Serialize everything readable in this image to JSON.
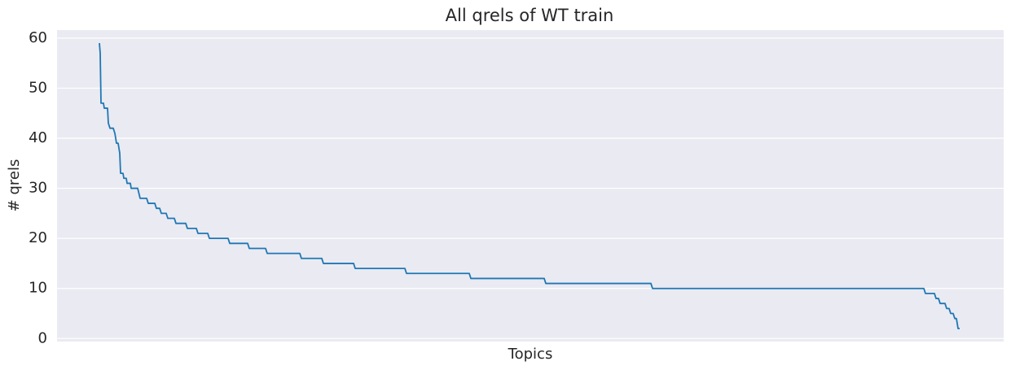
{
  "chart_data": {
    "type": "line",
    "title": "All qrels of WT train",
    "x_label": "Topics",
    "y_label": "# qrels",
    "x": [
      0,
      1,
      2,
      5,
      6,
      10,
      11,
      13,
      17,
      19,
      21,
      23,
      25,
      26,
      29,
      30,
      33,
      34,
      38,
      39,
      47,
      50,
      58,
      60,
      68,
      70,
      74,
      76,
      82,
      84,
      92,
      94,
      106,
      108,
      119,
      121,
      133,
      135,
      158,
      160,
      182,
      184,
      204,
      206,
      246,
      248,
      273,
      275,
      312,
      314,
      375,
      377,
      454,
      456,
      546,
      548,
      677,
      679,
      1012,
      1014,
      1025,
      1027,
      1030,
      1032,
      1038,
      1040,
      1043,
      1045,
      1048,
      1050,
      1052,
      1054,
      1056
    ],
    "series": [
      {
        "name": "qrels",
        "color": "#1f77b4",
        "values": [
          59,
          57,
          47,
          47,
          46,
          46,
          43,
          42,
          42,
          41,
          39,
          39,
          37,
          33,
          33,
          32,
          32,
          31,
          31,
          30,
          30,
          28,
          28,
          27,
          27,
          26,
          26,
          25,
          25,
          24,
          24,
          23,
          23,
          22,
          22,
          21,
          21,
          20,
          20,
          19,
          19,
          18,
          18,
          17,
          17,
          16,
          16,
          15,
          15,
          14,
          14,
          13,
          13,
          12,
          12,
          11,
          11,
          10,
          10,
          9,
          9,
          8,
          8,
          7,
          7,
          6,
          6,
          5,
          5,
          4,
          4,
          2,
          2
        ]
      }
    ],
    "xlim": [
      -52,
      1110
    ],
    "ylim": [
      -0.6,
      61.6
    ],
    "yticks": [
      0,
      10,
      20,
      30,
      40,
      50,
      60
    ],
    "grid": true
  }
}
